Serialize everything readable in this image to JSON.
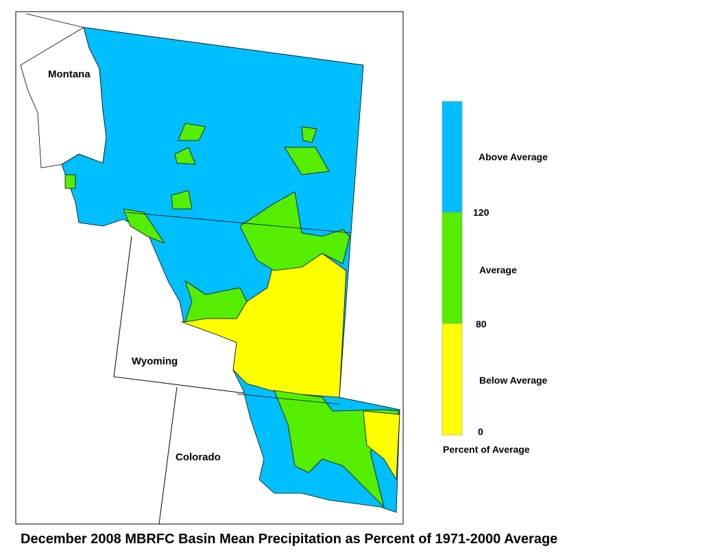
{
  "map": {
    "title": "December 2008 MBRFC Basin Mean Precipitation as Percent of 1971-2000 Average",
    "states": [
      "Montana",
      "Wyoming",
      "Colorado"
    ],
    "legend": {
      "title": "Percent of Average",
      "classes": [
        {
          "label": "Above Average",
          "color": "#00bfff"
        },
        {
          "label": "Average",
          "color": "#55ee00"
        },
        {
          "label": "Below Average",
          "color": "#ffff00"
        }
      ],
      "breaks": [
        120,
        80,
        0
      ]
    }
  }
}
